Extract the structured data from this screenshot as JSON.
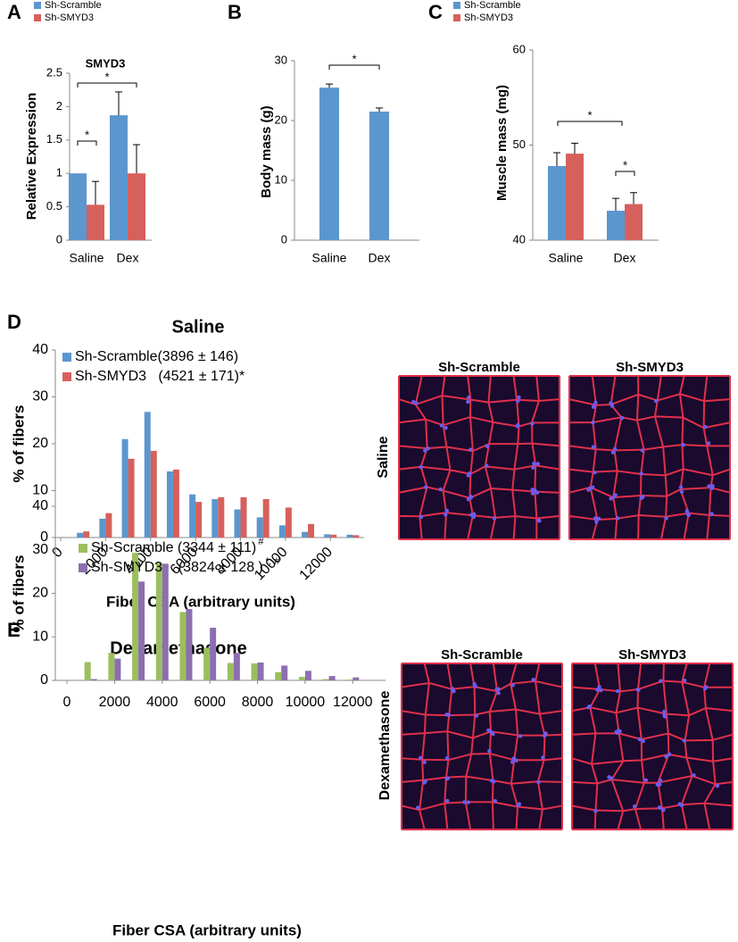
{
  "chart_data": [
    {
      "type": "bar",
      "panel_label": "A",
      "title": "SMYD3",
      "ylabel": "Relative Expression",
      "categories": [
        "Saline",
        "Dex"
      ],
      "series": [
        {
          "name": "Sh-Scramble",
          "color": "#5b96cf",
          "values": [
            1,
            1.87
          ],
          "errors": [
            null,
            0.35
          ]
        },
        {
          "name": "Sh-SMYD3",
          "color": "#d6605c",
          "values": [
            0.53,
            1.0
          ],
          "errors": [
            0.35,
            0.43
          ]
        }
      ],
      "ylim": [
        0,
        2.5
      ],
      "yticks": [
        0,
        0.5,
        1,
        1.5,
        2,
        2.5
      ],
      "annotations": [
        "*",
        "*"
      ]
    },
    {
      "type": "bar",
      "panel_label": "B",
      "ylabel": "Body mass (g)",
      "categories": [
        "Saline",
        "Dex"
      ],
      "series": [
        {
          "color": "#5b96cf",
          "values": [
            25.5,
            21.5
          ],
          "errors": [
            0.6,
            0.6
          ]
        }
      ],
      "ylim": [
        0,
        30
      ],
      "yticks": [
        0,
        10,
        20,
        30
      ],
      "annotations": [
        "*"
      ]
    },
    {
      "type": "bar",
      "panel_label": "C",
      "ylabel": "Muscle mass (mg)",
      "categories": [
        "Saline",
        "Dex"
      ],
      "series": [
        {
          "name": "Sh-Scramble",
          "color": "#5b96cf",
          "values": [
            47.8,
            43.1
          ],
          "errors": [
            1.4,
            1.3
          ]
        },
        {
          "name": "Sh-SMYD3",
          "color": "#d6605c",
          "values": [
            49.1,
            43.8
          ],
          "errors": [
            1.1,
            1.2
          ]
        }
      ],
      "ylim": [
        40,
        60
      ],
      "yticks": [
        40,
        50,
        60
      ],
      "annotations": [
        "*",
        "*"
      ]
    },
    {
      "type": "bar",
      "panel_label": "D",
      "title": "Saline",
      "ylabel": "% of fibers",
      "xlabel": "Fiber CSA (arbitrary units)",
      "x": [
        1000,
        2000,
        3000,
        4000,
        5000,
        6000,
        7000,
        8000,
        9000,
        10000,
        11000,
        12000,
        13000
      ],
      "series": [
        {
          "name": "Sh-Scramble(3896 ± 146)",
          "color": "#5b96cf",
          "values": [
            1.0,
            4.0,
            21,
            26.8,
            14.1,
            9.2,
            8.2,
            6.0,
            4.3,
            2.6,
            1.2,
            0.7,
            0.6
          ]
        },
        {
          "name": "Sh-SMYD3   (4521 ± 171)*",
          "color": "#d6605c",
          "values": [
            1.3,
            5.2,
            16.8,
            18.5,
            14.5,
            7.6,
            8.6,
            8.6,
            8.2,
            6.4,
            2.9,
            0.6,
            0.5
          ]
        }
      ],
      "xlim": [
        0,
        13500
      ],
      "xticks": [
        0,
        2000,
        4000,
        6000,
        8000,
        10000,
        12000
      ],
      "ylim": [
        0,
        40
      ],
      "yticks": [
        0,
        10,
        20,
        30,
        40
      ]
    },
    {
      "type": "bar",
      "panel_label": "E",
      "title": "Dexamethasone",
      "ylabel": "% of fibers",
      "xlabel": "Fiber CSA (arbitrary units)",
      "x": [
        1000,
        2000,
        3000,
        4000,
        5000,
        6000,
        7000,
        8000,
        9000,
        10000,
        11000,
        12000
      ],
      "series": [
        {
          "name": "Sh-Scramble (3344 ± 111)",
          "name_superscript": "#",
          "color": "#9bbf5e",
          "values": [
            4.2,
            6.3,
            29.3,
            27,
            15.7,
            7.5,
            4.0,
            3.9,
            1.9,
            0.8,
            0.3,
            0.2
          ]
        },
        {
          "name": "Sh-SMYD3    (3824 ± 128 )",
          "name_superscript": "*, #",
          "color": "#8c6fb0",
          "values": [
            0.3,
            5.0,
            22.7,
            26.8,
            16.4,
            12.1,
            6.3,
            4.1,
            3.4,
            2.2,
            1.0,
            0.7
          ]
        }
      ],
      "xlim": [
        0,
        13000
      ],
      "xticks": [
        0,
        2000,
        4000,
        6000,
        8000,
        10000,
        12000
      ],
      "ylim": [
        0,
        40
      ],
      "yticks": [
        0,
        10,
        20,
        30,
        40
      ]
    }
  ],
  "images": [
    {
      "row_label": "Saline",
      "columns": [
        "Sh-Scramble",
        "Sh-SMYD3"
      ]
    },
    {
      "row_label": "Dexamethasone",
      "columns": [
        "Sh-Scramble",
        "Sh-SMYD3"
      ]
    }
  ]
}
